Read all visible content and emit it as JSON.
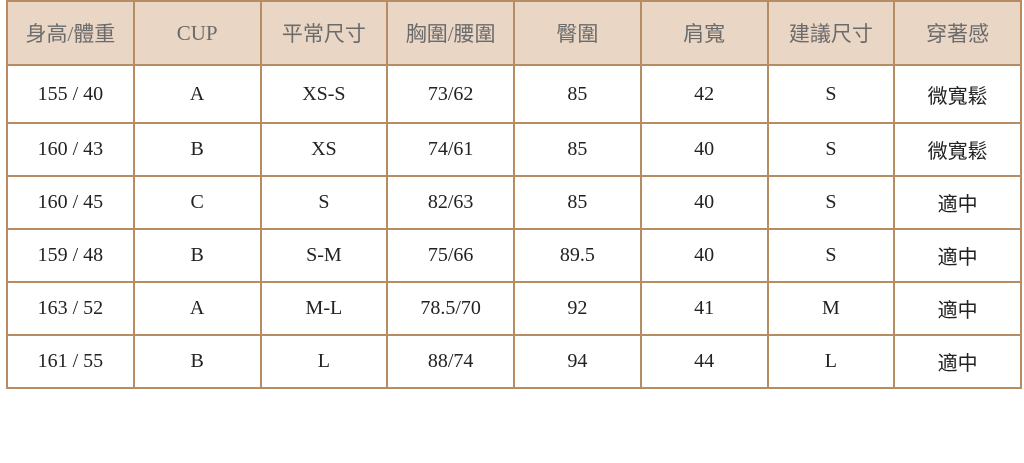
{
  "headers": [
    "身高/體重",
    "CUP",
    "平常尺寸",
    "胸圍/腰圍",
    "臀圍",
    "肩寬",
    "建議尺寸",
    "穿著感"
  ],
  "rows": [
    [
      "155 / 40",
      "A",
      "XS-S",
      "73/62",
      "85",
      "42",
      "S",
      "微寬鬆"
    ],
    [
      "160 / 43",
      "B",
      "XS",
      "74/61",
      "85",
      "40",
      "S",
      "微寬鬆"
    ],
    [
      "160 / 45",
      "C",
      "S",
      "82/63",
      "85",
      "40",
      "S",
      "適中"
    ],
    [
      "159 / 48",
      "B",
      "S-M",
      "75/66",
      "89.5",
      "40",
      "S",
      "適中"
    ],
    [
      "163 / 52",
      "A",
      "M-L",
      "78.5/70",
      "92",
      "41",
      "M",
      "適中"
    ],
    [
      "161 / 55",
      "B",
      "L",
      "88/74",
      "94",
      "44",
      "L",
      "適中"
    ]
  ],
  "colors": {
    "header_bg": "#e9d6c5",
    "border": "#b88c62",
    "header_text": "#6b6b6b"
  }
}
